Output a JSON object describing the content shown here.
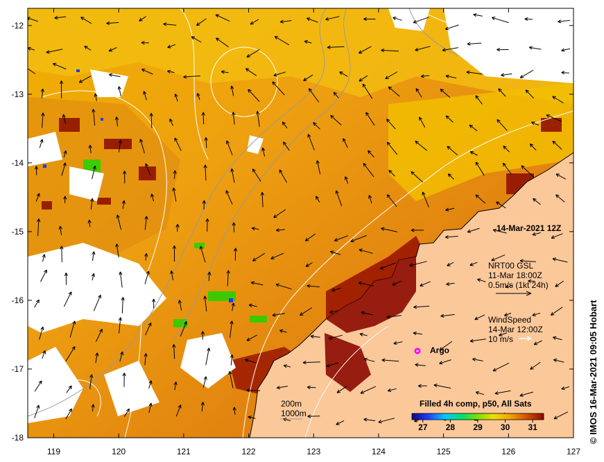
{
  "map": {
    "date_label": "14-Mar-2021 12Z",
    "current": {
      "title": "NRT00 GSL",
      "time": "11-Mar 18:00Z",
      "scale": "0.5m/s (1kt 24h)"
    },
    "wind": {
      "title": "WindSpeed",
      "time": "14-Mar 12:00Z",
      "scale": "10 m/s"
    },
    "argo_label": "Argo",
    "depth_contours": [
      "200m",
      "1000m"
    ],
    "colorbar": {
      "title": "Filled 4h comp, p50, All Sats",
      "ticks": [
        "27",
        "28",
        "29",
        "30",
        "31"
      ],
      "min": 26.6,
      "max": 31.4
    },
    "x_ticks": [
      "119",
      "120",
      "121",
      "122",
      "123",
      "124",
      "125",
      "126",
      "127"
    ],
    "y_ticks": [
      "-12",
      "-13",
      "-14",
      "-15",
      "-16",
      "-17",
      "-18"
    ],
    "lon_range": [
      118.6,
      127
    ],
    "lat_range": [
      -18,
      -11.75
    ],
    "credit": "© IMOS 16-Mar-2021 09:05 Hobart",
    "colors": {
      "land": "#fbc89a",
      "sst_hot": "#8b0a00",
      "sst_warm": "#e07a00",
      "sst_mid": "#f0b400",
      "sst_cool": "#2ad000",
      "argo": "#ff00ff",
      "contour": "#ffffff",
      "bathy": "#9a9a9a"
    }
  }
}
